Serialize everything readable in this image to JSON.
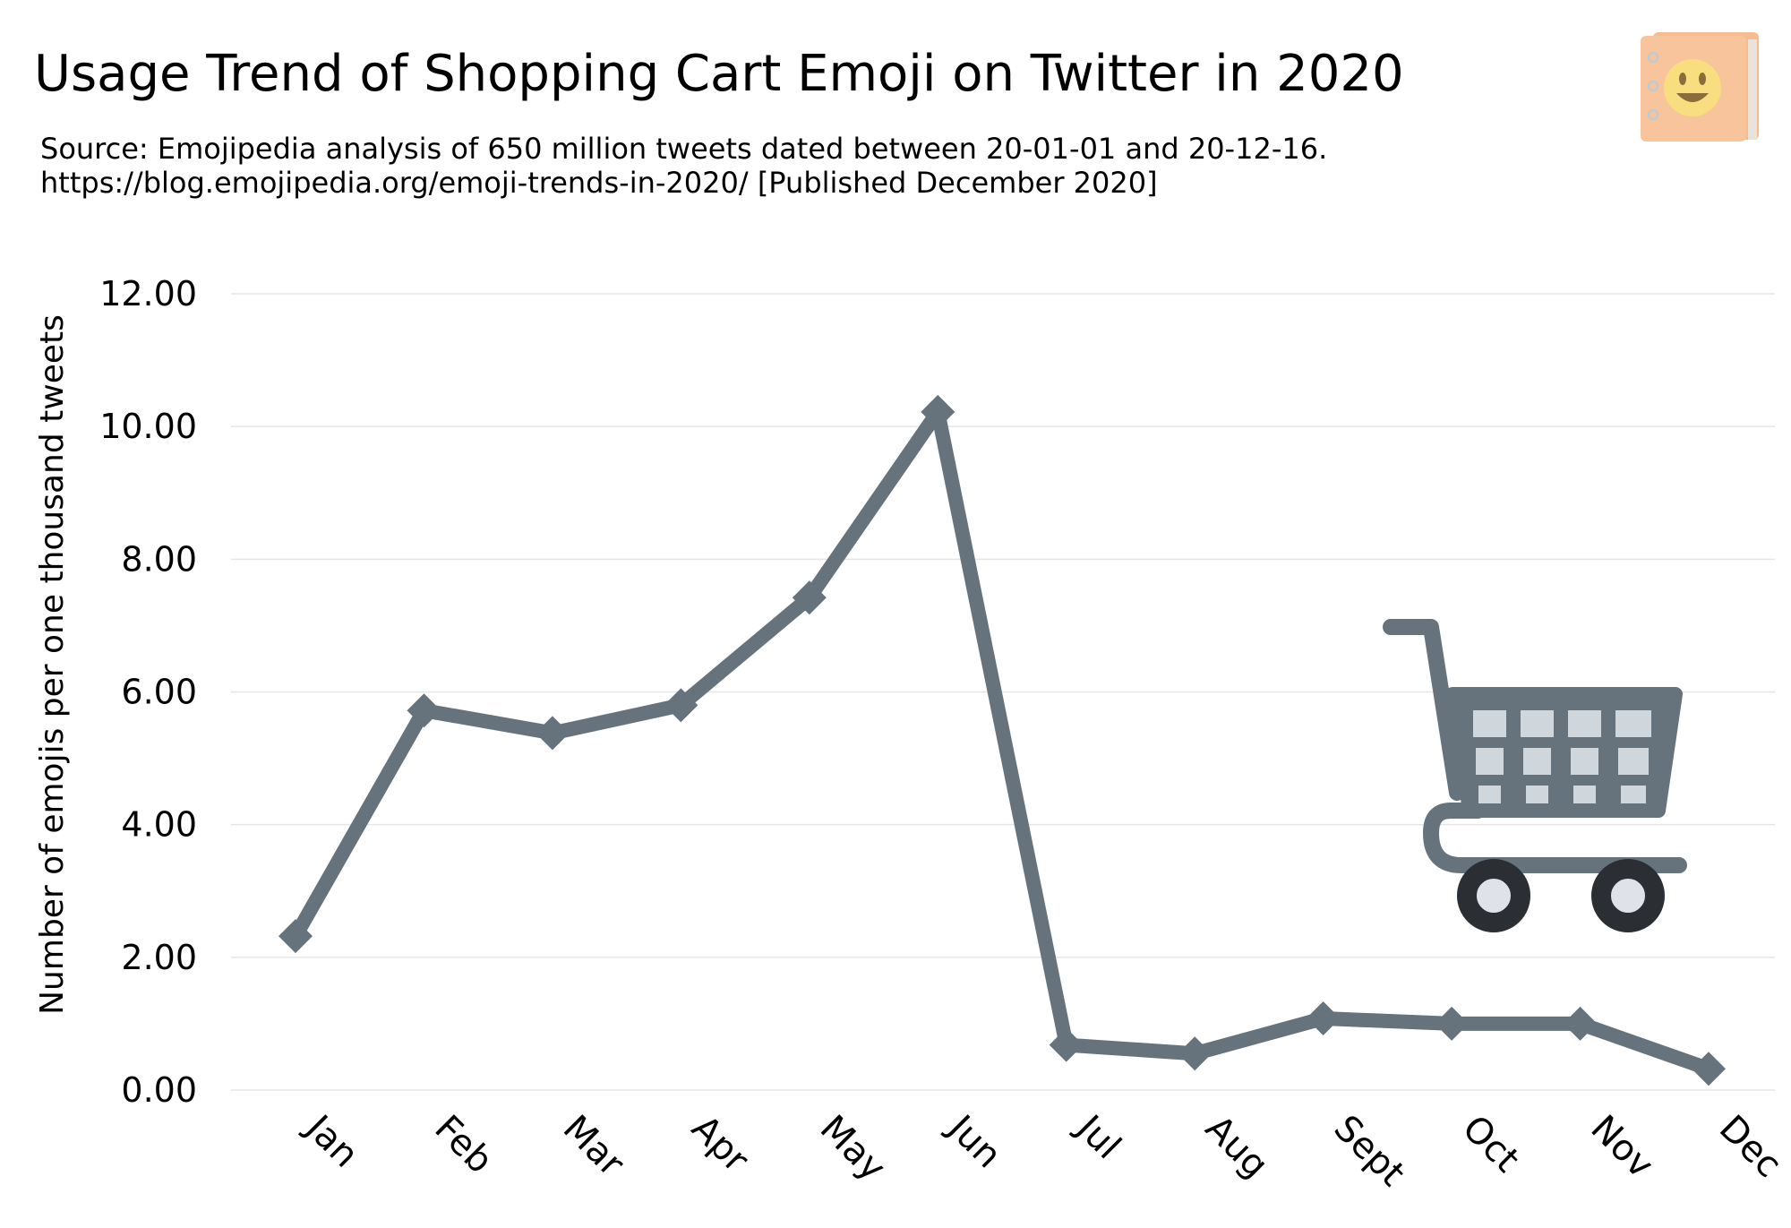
{
  "title": "Usage Trend of Shopping Cart Emoji on Twitter in 2020",
  "source_line1": "Source: Emojipedia analysis of 650 million tweets dated between 20-01-01 and 20-12-16.",
  "source_line2": "https://blog.emojipedia.org/emoji-trends-in-2020/ [Published December 2020]",
  "logo_icon": "emojipedia-book-icon",
  "illustration_icon": "shopping-cart-icon",
  "colors": {
    "series": "#67737c",
    "grid": "#e6e6e6",
    "cart": "#67737c",
    "cart_fill": "#cfd6dc",
    "wheel": "#2b2f33",
    "wheel_hub": "#dfe2e8"
  },
  "chart_data": {
    "type": "line",
    "title": "Usage Trend of Shopping Cart Emoji on Twitter in 2020",
    "xlabel": "",
    "ylabel": "Number of emojis per one thousand tweets",
    "categories": [
      "Jan",
      "Feb",
      "Mar",
      "Apr",
      "May",
      "Jun",
      "Jul",
      "Aug",
      "Sept",
      "Oct",
      "Nov",
      "Dec"
    ],
    "values": [
      2.32,
      5.72,
      5.38,
      5.8,
      7.42,
      10.22,
      0.68,
      0.55,
      1.08,
      1.0,
      1.0,
      0.32
    ],
    "yticks": [
      "0.00",
      "2.00",
      "4.00",
      "6.00",
      "8.00",
      "10.00",
      "12.00"
    ],
    "ylim": [
      0,
      12
    ],
    "grid": true,
    "legend": "none",
    "marker": "diamond"
  }
}
